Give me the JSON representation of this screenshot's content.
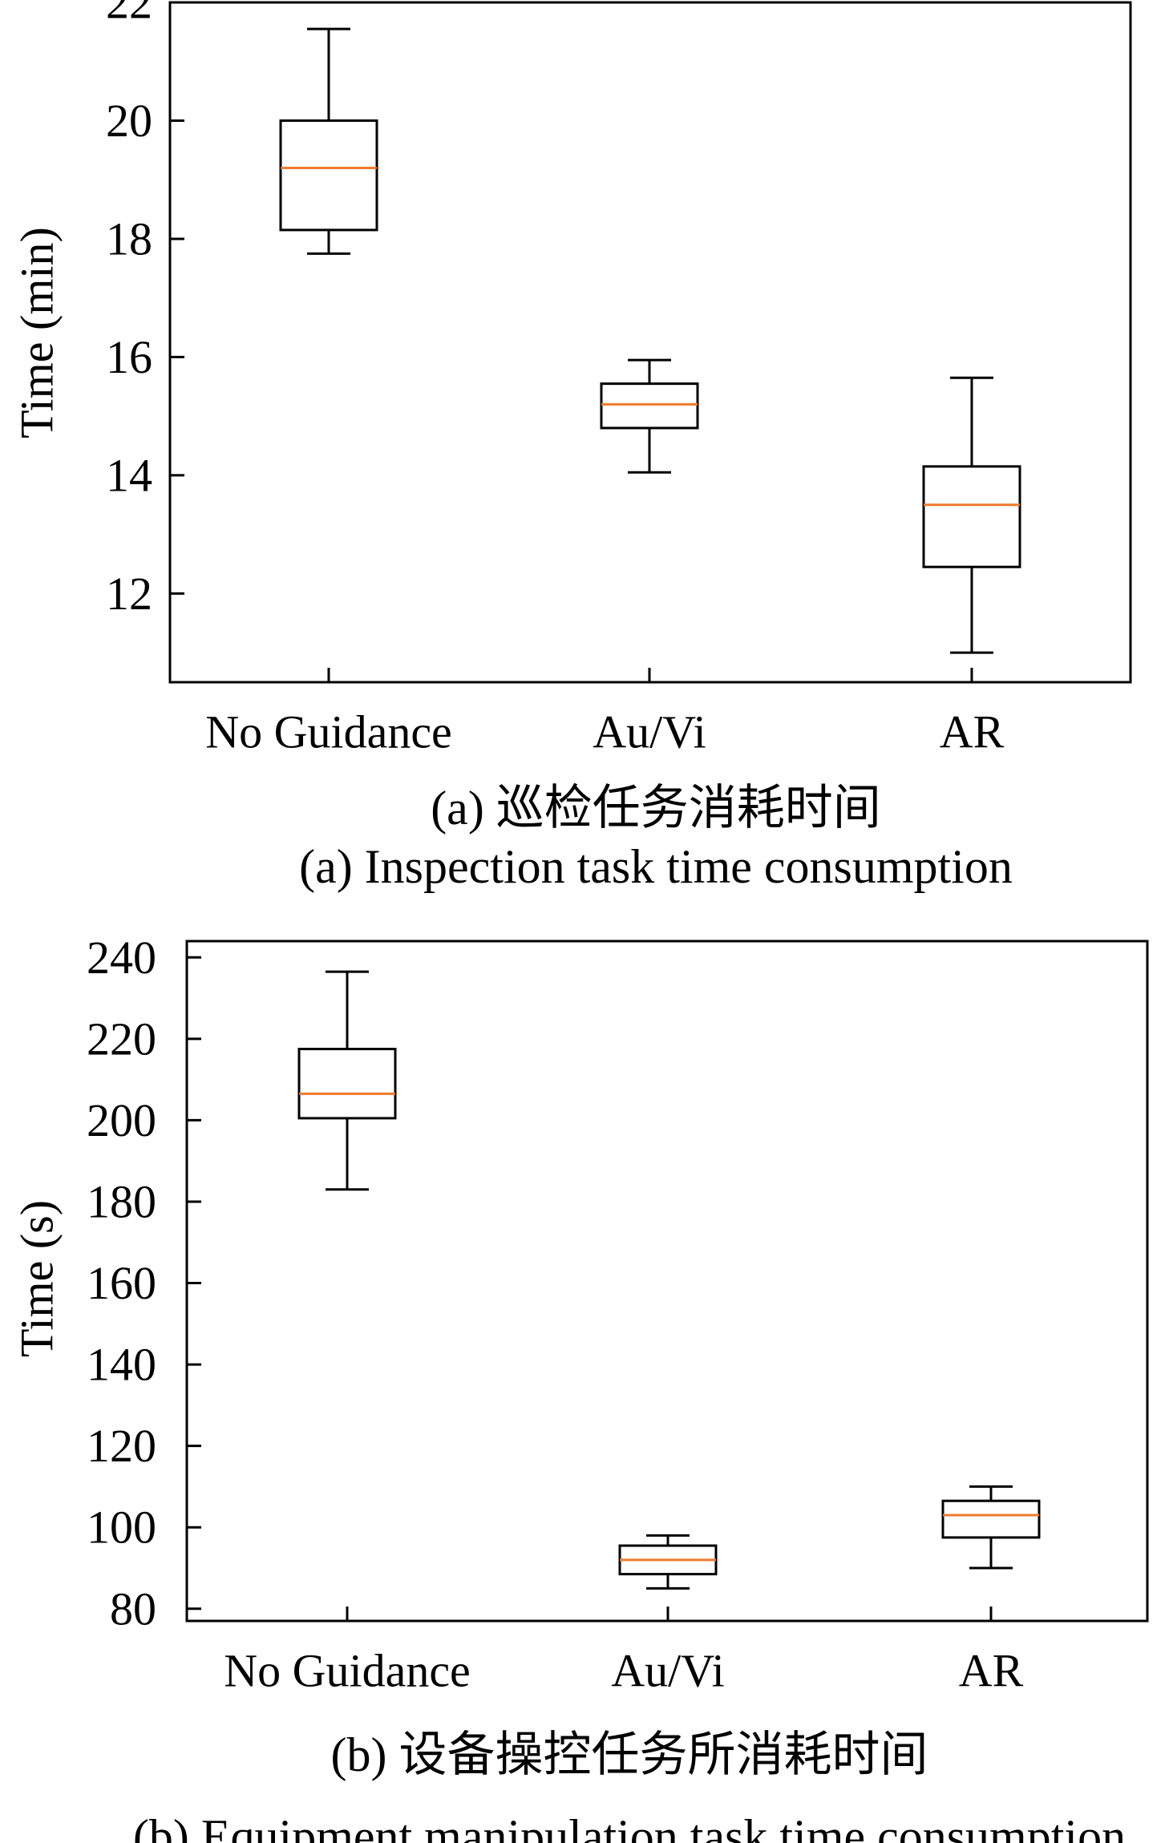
{
  "chart_data": [
    {
      "type": "box",
      "ylabel": "Time (min)",
      "ylim": [
        10.5,
        22
      ],
      "yticks": [
        12,
        14,
        16,
        18,
        20,
        22
      ],
      "categories": [
        "No Guidance",
        "Au/Vi",
        "AR"
      ],
      "boxes": [
        {
          "category": "No Guidance",
          "whisker_low": 17.75,
          "q1": 18.15,
          "median": 19.2,
          "q3": 20.0,
          "whisker_high": 21.55
        },
        {
          "category": "Au/Vi",
          "whisker_low": 14.05,
          "q1": 14.8,
          "median": 15.2,
          "q3": 15.55,
          "whisker_high": 15.95
        },
        {
          "category": "AR",
          "whisker_low": 11.0,
          "q1": 12.45,
          "median": 13.5,
          "q3": 14.15,
          "whisker_high": 15.65
        }
      ],
      "caption_cn": "(a) 巡检任务消耗时间",
      "caption_en": "(a) Inspection task time consumption",
      "grid": false,
      "box_color": "#000000",
      "median_color": "#f07a2c"
    },
    {
      "type": "box",
      "ylabel": "Time (s)",
      "ylim": [
        77,
        244
      ],
      "yticks": [
        80,
        100,
        120,
        140,
        160,
        180,
        200,
        220,
        240
      ],
      "categories": [
        "No Guidance",
        "Au/Vi",
        "AR"
      ],
      "boxes": [
        {
          "category": "No Guidance",
          "whisker_low": 183,
          "q1": 200.5,
          "median": 206.5,
          "q3": 217.5,
          "whisker_high": 236.5
        },
        {
          "category": "Au/Vi",
          "whisker_low": 85,
          "q1": 88.5,
          "median": 92,
          "q3": 95.5,
          "whisker_high": 98
        },
        {
          "category": "AR",
          "whisker_low": 90,
          "q1": 97.5,
          "median": 103,
          "q3": 106.5,
          "whisker_high": 110
        }
      ],
      "caption_cn": "(b) 设备操控任务所消耗时间",
      "caption_en": "(b) Equipment manipulation task time consumption",
      "grid": false,
      "box_color": "#000000",
      "median_color": "#f07a2c"
    }
  ]
}
